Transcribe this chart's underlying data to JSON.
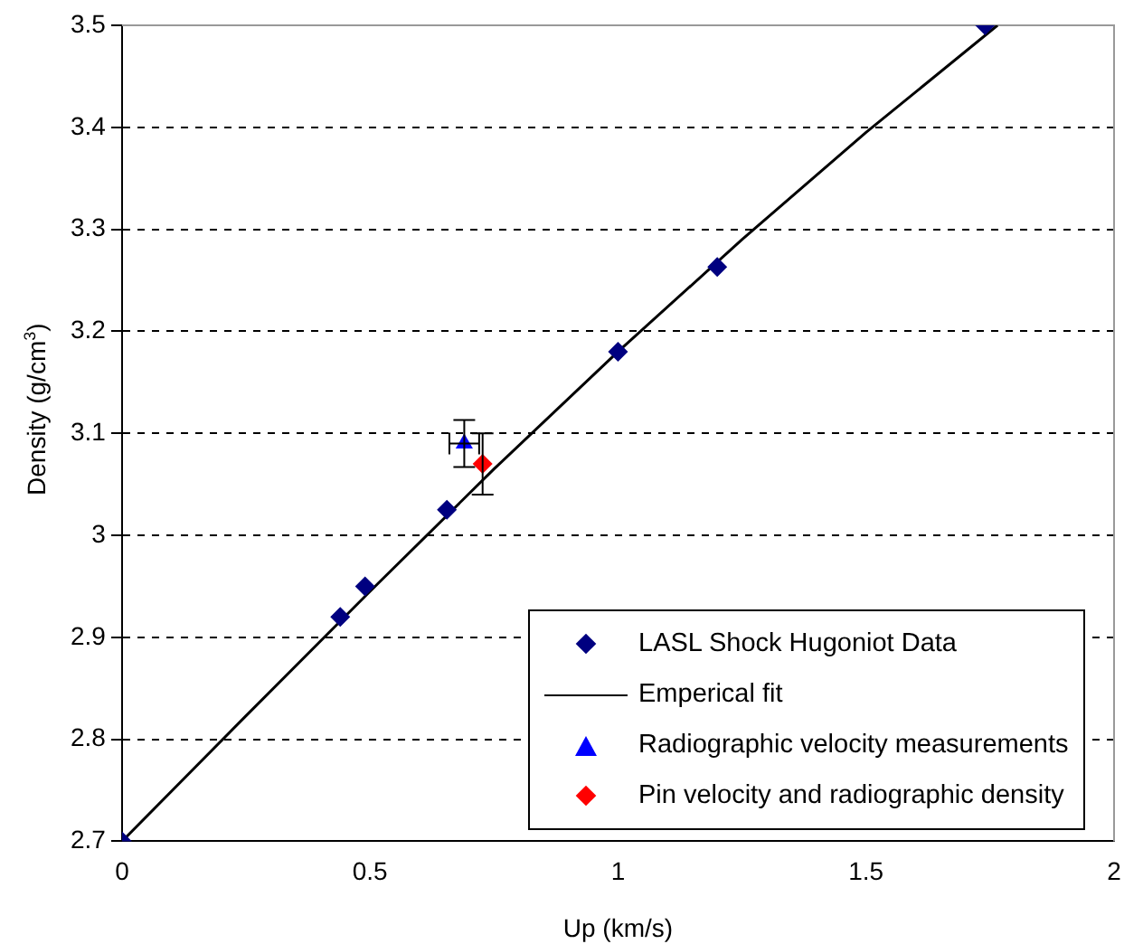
{
  "chart_data": {
    "type": "scatter",
    "xlabel": "Up (km/s)",
    "ylabel": "Density (g/cm$^{3}$)",
    "xlim": [
      0,
      2
    ],
    "xticks": [
      0,
      0.5,
      1,
      1.5,
      2
    ],
    "ylim": [
      2.7,
      3.5
    ],
    "yticks": [
      2.7,
      2.8,
      2.9,
      3,
      3.1,
      3.2,
      3.3,
      3.4,
      3.5
    ],
    "grid": "y",
    "legend": "bottom right",
    "series": [
      {
        "name": "LASL Shock Hugoniot Data",
        "type": "scatter",
        "marker": "diamond",
        "color": "#000080",
        "x": [
          0,
          0.44,
          0.49,
          0.655,
          1.0,
          1.2,
          1.74
        ],
        "values": [
          2.7,
          2.92,
          2.95,
          3.025,
          3.18,
          3.263,
          3.5
        ]
      },
      {
        "name": "Emperical fit",
        "type": "line",
        "marker": "none",
        "line_style": "solid",
        "color": "#000000",
        "x": [
          0,
          0.25,
          0.5,
          0.75,
          1,
          1.25,
          1.5,
          1.765
        ],
        "values": [
          2.7,
          2.823,
          2.945,
          3.065,
          3.18,
          3.29,
          3.395,
          3.5
        ]
      },
      {
        "name": "Radiographic velocity measurements",
        "type": "scatter",
        "marker": "triangle",
        "color": "#0000ff",
        "x": [
          0.69
        ],
        "values": [
          3.09
        ],
        "errors": [
          0.023
        ],
        "xerrors": [
          0.03
        ]
      },
      {
        "name": "Pin velocity and radiographic density",
        "type": "scatter",
        "marker": "diamond",
        "color": "#ff0000",
        "x": [
          0.727
        ],
        "values": [
          3.07
        ],
        "errors": [
          0.03
        ]
      }
    ]
  }
}
